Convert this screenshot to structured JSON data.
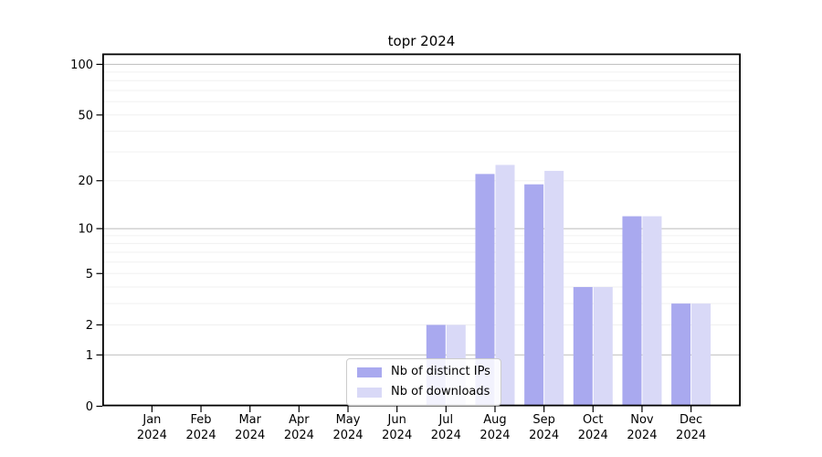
{
  "title": "topr 2024",
  "chart_data": {
    "type": "bar",
    "title": "topr 2024",
    "categories": [
      "Jan",
      "Feb",
      "Mar",
      "Apr",
      "May",
      "Jun",
      "Jul",
      "Aug",
      "Sep",
      "Oct",
      "Nov",
      "Dec"
    ],
    "category_year": "2024",
    "series": [
      {
        "name": "Nb of distinct IPs",
        "color": "#a9a9ef",
        "values": [
          0,
          0,
          0,
          0,
          0,
          0,
          2,
          22,
          19,
          4,
          12,
          3
        ]
      },
      {
        "name": "Nb of downloads",
        "color": "#d9d9f7",
        "values": [
          0,
          0,
          0,
          0,
          0,
          0,
          2,
          25,
          23,
          4,
          12,
          3
        ]
      }
    ],
    "yscale": "log1p",
    "ylim": [
      0,
      116
    ],
    "yticks": [
      0,
      1,
      2,
      5,
      10,
      20,
      50,
      100
    ],
    "major_gridlines": [
      1,
      10,
      100
    ],
    "minor_gridlines": [
      2,
      3,
      4,
      5,
      6,
      7,
      8,
      9,
      20,
      30,
      40,
      50,
      60,
      70,
      80,
      90
    ],
    "grid": true,
    "legend_position": "lower center",
    "colors": {
      "major_grid": "#c4c4c4",
      "minor_grid": "#f0f0f0",
      "spine": "#000000",
      "tick_text": "#000000"
    }
  }
}
